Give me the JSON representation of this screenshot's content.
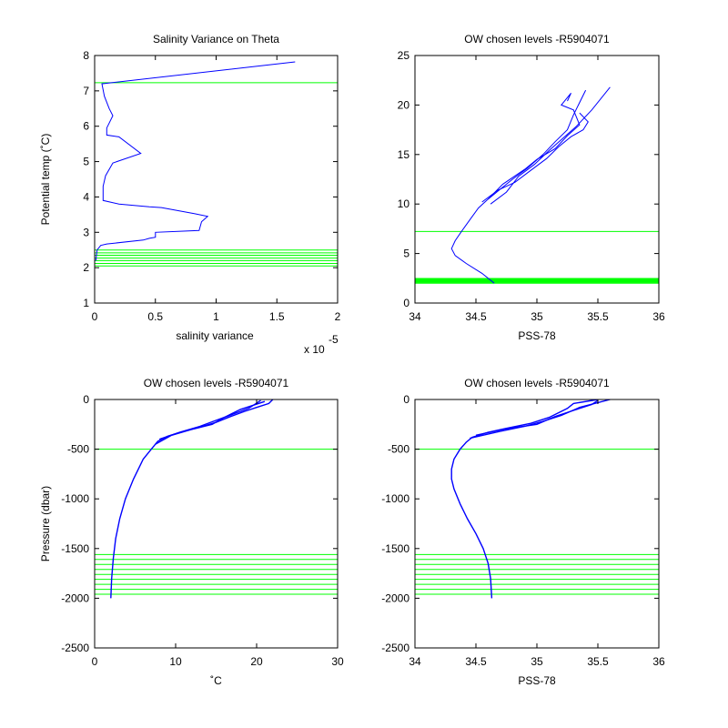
{
  "colors": {
    "line": "#0000ff",
    "levels": "#00ff00",
    "axes": "#000000",
    "background": "#ffffff"
  },
  "chart_data": [
    {
      "id": "tl",
      "type": "line",
      "title": "Salinity Variance on Theta",
      "xlabel": "salinity variance",
      "ylabel": "Potential temp (˚C)",
      "xlim": [
        0,
        2
      ],
      "ylim": [
        1,
        8
      ],
      "xticks": [
        0,
        0.5,
        1,
        1.5,
        2
      ],
      "xtick_labels": [
        "0",
        "0.5",
        "1",
        "1.5",
        "2"
      ],
      "yticks": [
        1,
        2,
        3,
        4,
        5,
        6,
        7,
        8
      ],
      "ytick_labels": [
        "1",
        "2",
        "3",
        "4",
        "5",
        "6",
        "7",
        "8"
      ],
      "x_multiplier": "x 10",
      "x_multiplier_exponent": "-5",
      "series": [
        {
          "x": [
            0.01,
            0.02,
            0.05,
            0.1,
            0.4,
            0.45,
            0.5,
            0.5,
            0.86,
            0.88,
            0.93,
            0.82,
            0.55,
            0.45,
            0.2,
            0.07,
            0.07,
            0.09,
            0.15,
            0.38,
            0.2,
            0.1,
            0.1,
            0.15,
            0.12,
            0.08,
            0.06,
            1.65
          ],
          "y": [
            2.2,
            2.5,
            2.63,
            2.67,
            2.78,
            2.83,
            2.86,
            3.0,
            3.05,
            3.3,
            3.45,
            3.53,
            3.7,
            3.72,
            3.8,
            3.9,
            4.3,
            4.6,
            4.96,
            5.23,
            5.7,
            5.75,
            5.95,
            6.3,
            6.5,
            6.85,
            7.2,
            7.82
          ]
        }
      ],
      "levels": [
        2.05,
        2.12,
        2.2,
        2.27,
        2.35,
        2.42,
        2.5,
        7.23
      ]
    },
    {
      "id": "tr",
      "type": "line",
      "title": "OW chosen levels -R5904071",
      "xlabel": "PSS-78",
      "ylabel": "",
      "xlim": [
        34,
        36
      ],
      "ylim": [
        0,
        25
      ],
      "xticks": [
        34,
        34.5,
        35,
        35.5,
        36
      ],
      "xtick_labels": [
        "34",
        "34.5",
        "35",
        "35.5",
        "36"
      ],
      "yticks": [
        0,
        5,
        10,
        15,
        20,
        25
      ],
      "ytick_labels": [
        "0",
        "5",
        "10",
        "15",
        "20",
        "25"
      ],
      "series": [
        {
          "x": [
            34.65,
            34.55,
            34.42,
            34.33,
            34.3,
            34.33,
            34.38,
            34.45,
            34.52,
            34.6,
            34.7,
            34.8,
            34.92,
            35.05,
            35.15,
            35.25,
            35.3,
            35.4
          ],
          "y": [
            2.0,
            3.0,
            4.0,
            4.8,
            5.5,
            6.3,
            7.2,
            8.4,
            9.6,
            10.5,
            11.5,
            12.5,
            13.6,
            15.0,
            16.3,
            17.5,
            19.0,
            21.5
          ]
        },
        {
          "x": [
            34.62,
            34.75,
            34.85,
            34.98,
            35.1,
            35.2,
            35.32,
            35.45,
            35.6
          ],
          "y": [
            10.0,
            11.2,
            12.8,
            14.0,
            15.4,
            16.5,
            17.8,
            19.5,
            21.8
          ]
        },
        {
          "x": [
            34.55,
            34.68,
            34.82,
            34.95,
            35.08,
            35.18,
            35.28,
            35.38,
            35.42,
            35.35
          ],
          "y": [
            10.2,
            11.4,
            12.2,
            13.4,
            14.6,
            15.8,
            16.8,
            17.5,
            18.3,
            19.2
          ]
        },
        {
          "x": [
            34.6,
            34.72,
            34.9,
            35.0,
            35.15,
            35.25,
            35.35,
            35.3,
            35.2,
            35.28,
            35.25
          ],
          "y": [
            10.5,
            12.0,
            13.5,
            14.5,
            15.6,
            16.9,
            18.0,
            19.5,
            20.0,
            21.2,
            20.4
          ]
        }
      ],
      "levels": [
        2.0,
        2.06,
        2.12,
        2.18,
        2.24,
        2.3,
        2.36,
        2.42,
        2.48,
        7.23
      ]
    },
    {
      "id": "bl",
      "type": "line",
      "title": "OW chosen levels -R5904071",
      "xlabel": "˚C",
      "ylabel": "Pressure (dbar)",
      "xlim": [
        0,
        30
      ],
      "ylim": [
        -2500,
        0
      ],
      "xticks": [
        0,
        10,
        20,
        30
      ],
      "xtick_labels": [
        "0",
        "10",
        "20",
        "30"
      ],
      "yticks": [
        0,
        -500,
        -1000,
        -1500,
        -2000,
        -2500
      ],
      "ytick_labels": [
        "0",
        "-500",
        "-1000",
        "-1500",
        "-2000",
        "-2500"
      ],
      "series": [
        {
          "x": [
            2.0,
            2.1,
            2.3,
            2.6,
            3.1,
            3.8,
            4.8,
            6.0,
            7.0,
            7.8,
            9.0,
            11.0,
            13.0,
            15.0,
            16.5,
            18.5,
            20.0,
            21.5,
            22.0
          ],
          "y": [
            -2000,
            -1800,
            -1600,
            -1400,
            -1200,
            -1000,
            -800,
            -600,
            -500,
            -420,
            -370,
            -320,
            -280,
            -230,
            -180,
            -120,
            -80,
            -40,
            0
          ]
        },
        {
          "x": [
            7.5,
            9.5,
            12.0,
            14.5,
            16.0,
            18.0,
            19.5,
            21.0
          ],
          "y": [
            -450,
            -360,
            -300,
            -250,
            -180,
            -100,
            -60,
            -20
          ]
        },
        {
          "x": [
            8.0,
            10.5,
            13.0,
            15.0,
            17.0,
            19.0,
            20.5
          ],
          "y": [
            -400,
            -330,
            -270,
            -210,
            -150,
            -90,
            -10
          ]
        }
      ],
      "levels": [
        -1560,
        -1610,
        -1660,
        -1710,
        -1760,
        -1810,
        -1860,
        -1910,
        -1960,
        -500
      ]
    },
    {
      "id": "br",
      "type": "line",
      "title": "OW chosen levels -R5904071",
      "xlabel": "PSS-78",
      "ylabel": "",
      "xlim": [
        34,
        36
      ],
      "ylim": [
        -2500,
        0
      ],
      "xticks": [
        34,
        34.5,
        35,
        35.5,
        36
      ],
      "xtick_labels": [
        "34",
        "34.5",
        "35",
        "35.5",
        "36"
      ],
      "yticks": [
        0,
        -500,
        -1000,
        -1500,
        -2000,
        -2500
      ],
      "ytick_labels": [
        "0",
        "-500",
        "-1000",
        "-1500",
        "-2000",
        "-2500"
      ],
      "series": [
        {
          "x": [
            34.63,
            34.62,
            34.6,
            34.56,
            34.5,
            34.43,
            34.37,
            34.32,
            34.3,
            34.3,
            34.32,
            34.37,
            34.42,
            34.47,
            34.6,
            34.75,
            34.95,
            35.1,
            35.25,
            35.3,
            35.5
          ],
          "y": [
            -2000,
            -1800,
            -1650,
            -1500,
            -1350,
            -1200,
            -1050,
            -900,
            -800,
            -700,
            -600,
            -500,
            -430,
            -380,
            -330,
            -290,
            -240,
            -180,
            -90,
            -40,
            0
          ]
        },
        {
          "x": [
            34.45,
            34.7,
            34.9,
            35.05,
            35.2,
            35.35,
            35.6
          ],
          "y": [
            -390,
            -320,
            -270,
            -220,
            -160,
            -80,
            0
          ]
        },
        {
          "x": [
            34.5,
            34.72,
            35.0,
            35.15,
            35.3,
            35.45,
            35.5
          ],
          "y": [
            -360,
            -300,
            -250,
            -170,
            -110,
            -50,
            -10
          ]
        }
      ],
      "levels": [
        -1560,
        -1610,
        -1660,
        -1710,
        -1760,
        -1810,
        -1860,
        -1910,
        -1960,
        -500
      ]
    }
  ]
}
